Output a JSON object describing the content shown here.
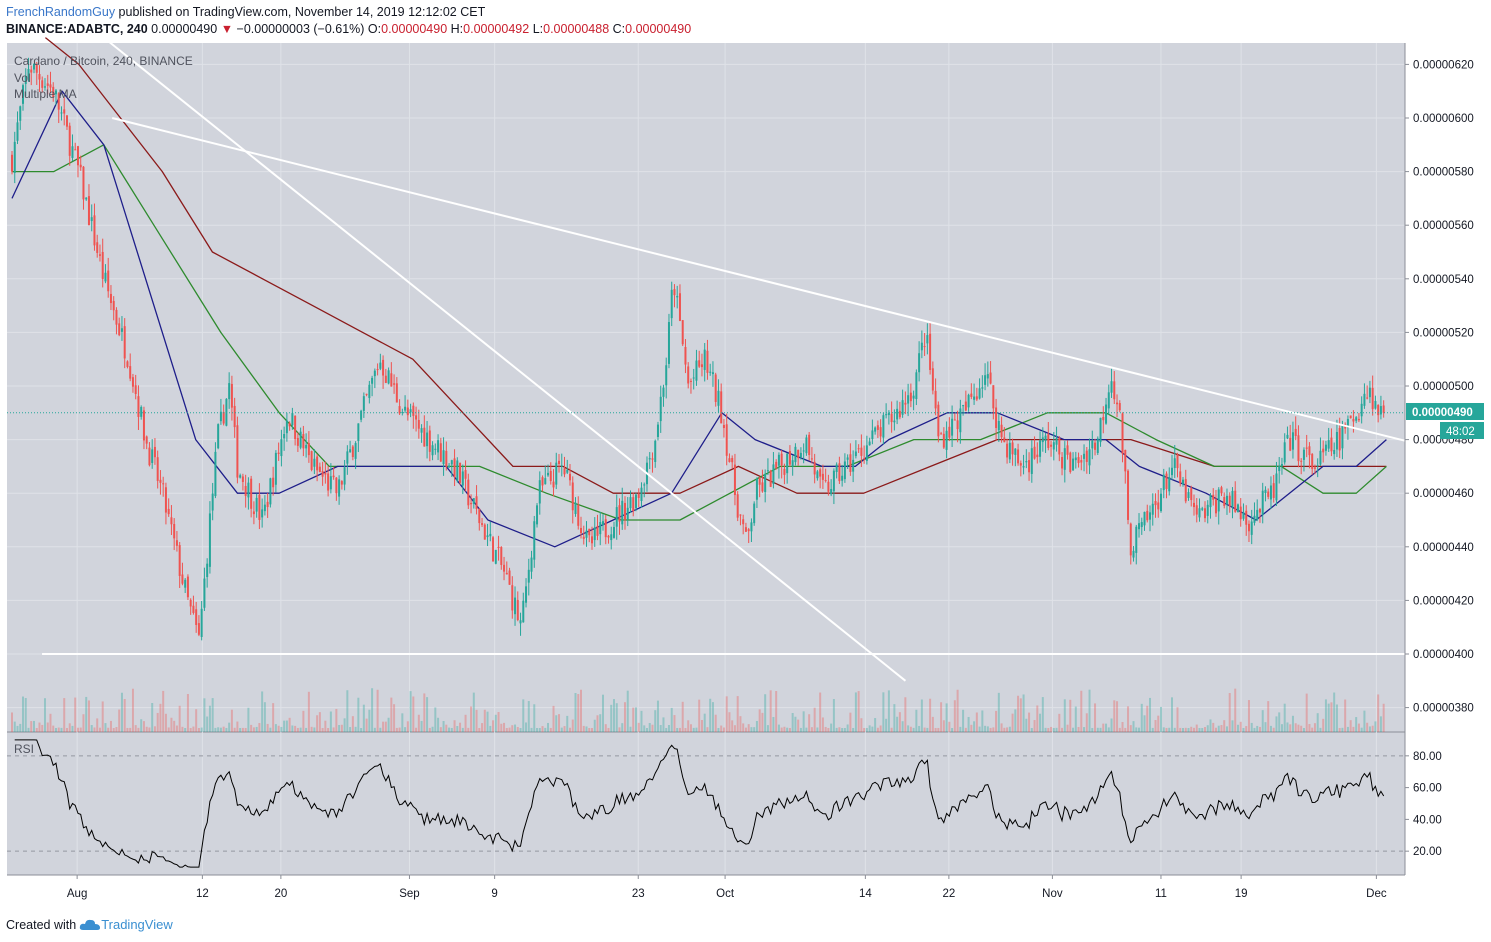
{
  "header": {
    "author": "FrenchRandomGuy",
    "published": " published on TradingView.com, November 14, 2019 12:12:02 CET",
    "symbol": "BINANCE:ADABTC, 240",
    "price": " 0.00000490",
    "change": " −0.00000003 (−0.61%)",
    "o_label": " O:",
    "o_val": "0.00000490",
    "h_label": " H:",
    "h_val": "0.00000492",
    "l_label": " L:",
    "l_val": "0.00000488",
    "c_label": " C:",
    "c_val": "0.00000490"
  },
  "footer": {
    "created": "Created with",
    "brand": "TradingView"
  },
  "colors": {
    "background": "#d1d4dc",
    "grid": "#dfe2e8",
    "up": "#26a69a",
    "down": "#ef5350",
    "ma_fast": "#1e1e8a",
    "ma_mid": "#2e8b2e",
    "ma_slow": "#8b1a1a",
    "trend": "#ffffff",
    "price_tag": "#26a69a",
    "rsi": "#000000"
  },
  "chart_data": {
    "type": "candlestick",
    "title": "Cardano / Bitcoin, 240, BINANCE",
    "legend": [
      "Vol",
      "Multiple MA"
    ],
    "x_tick_labels": [
      "Aug",
      "12",
      "20",
      "Sep",
      "9",
      "23",
      "Oct",
      "14",
      "22",
      "Nov",
      "11",
      "19",
      "Dec"
    ],
    "y_tick_labels": [
      "0.00000620",
      "0.00000600",
      "0.00000580",
      "0.00000560",
      "0.00000540",
      "0.00000520",
      "0.00000500",
      "0.00000480",
      "0.00000460",
      "0.00000440",
      "0.00000420",
      "0.00000400",
      "0.00000380"
    ],
    "ylim": [
      3.7e-06,
      6.3e-06
    ],
    "last_price_label": "0.00000490",
    "countdown_label": "48:02",
    "last_price": 4.9e-06,
    "close_anchors": [
      {
        "day": 0,
        "close": 5.85e-06
      },
      {
        "day": 1,
        "close": 6.2e-06
      },
      {
        "day": 2.5,
        "close": 6.1e-06
      },
      {
        "day": 4,
        "close": 5.8e-06
      },
      {
        "day": 5.5,
        "close": 5.4e-06
      },
      {
        "day": 7,
        "close": 5.1e-06
      },
      {
        "day": 8,
        "close": 4.8e-06
      },
      {
        "day": 9,
        "close": 4.6e-06
      },
      {
        "day": 10.5,
        "close": 4.2e-06
      },
      {
        "day": 11.2,
        "close": 4.05e-06
      },
      {
        "day": 12.3,
        "close": 4.8e-06
      },
      {
        "day": 13,
        "close": 5e-06
      },
      {
        "day": 13.5,
        "close": 4.7e-06
      },
      {
        "day": 15,
        "close": 4.5e-06
      },
      {
        "day": 16.5,
        "close": 4.9e-06
      },
      {
        "day": 18,
        "close": 4.7e-06
      },
      {
        "day": 19.5,
        "close": 4.6e-06
      },
      {
        "day": 21,
        "close": 4.9e-06
      },
      {
        "day": 22,
        "close": 5.1e-06
      },
      {
        "day": 23.5,
        "close": 4.9e-06
      },
      {
        "day": 25,
        "close": 4.8e-06
      },
      {
        "day": 26.5,
        "close": 4.7e-06
      },
      {
        "day": 28,
        "close": 4.5e-06
      },
      {
        "day": 29.5,
        "close": 4.3e-06
      },
      {
        "day": 30.5,
        "close": 4.1e-06
      },
      {
        "day": 31.5,
        "close": 4.6e-06
      },
      {
        "day": 33,
        "close": 4.7e-06
      },
      {
        "day": 34.5,
        "close": 4.4e-06
      },
      {
        "day": 36,
        "close": 4.5e-06
      },
      {
        "day": 37.5,
        "close": 4.6e-06
      },
      {
        "day": 38.5,
        "close": 4.8e-06
      },
      {
        "day": 39.2,
        "close": 5.1e-06
      },
      {
        "day": 39.6,
        "close": 5.4e-06
      },
      {
        "day": 40.5,
        "close": 5e-06
      },
      {
        "day": 41.5,
        "close": 5.1e-06
      },
      {
        "day": 42.5,
        "close": 4.9e-06
      },
      {
        "day": 43.3,
        "close": 4.6e-06
      },
      {
        "day": 44,
        "close": 4.4e-06
      },
      {
        "day": 44.5,
        "close": 4.6e-06
      },
      {
        "day": 46,
        "close": 4.7e-06
      },
      {
        "day": 47.5,
        "close": 4.8e-06
      },
      {
        "day": 48.5,
        "close": 4.6e-06
      },
      {
        "day": 50,
        "close": 4.7e-06
      },
      {
        "day": 51.5,
        "close": 4.8e-06
      },
      {
        "day": 53,
        "close": 4.9e-06
      },
      {
        "day": 54,
        "close": 5e-06
      },
      {
        "day": 54.7,
        "close": 5.2e-06
      },
      {
        "day": 55.5,
        "close": 4.8e-06
      },
      {
        "day": 57,
        "close": 4.9e-06
      },
      {
        "day": 58.3,
        "close": 5.05e-06
      },
      {
        "day": 59.3,
        "close": 4.8e-06
      },
      {
        "day": 60.5,
        "close": 4.7e-06
      },
      {
        "day": 62,
        "close": 4.8e-06
      },
      {
        "day": 63.5,
        "close": 4.7e-06
      },
      {
        "day": 65,
        "close": 4.8e-06
      },
      {
        "day": 65.8,
        "close": 5.05e-06
      },
      {
        "day": 66.3,
        "close": 4.9e-06
      },
      {
        "day": 66.6,
        "close": 4.7e-06
      },
      {
        "day": 66.9,
        "close": 4.4e-06
      },
      {
        "day": 68,
        "close": 4.5e-06
      },
      {
        "day": 69.5,
        "close": 4.7e-06
      },
      {
        "day": 71,
        "close": 4.5e-06
      },
      {
        "day": 72.5,
        "close": 4.6e-06
      },
      {
        "day": 74,
        "close": 4.5e-06
      },
      {
        "day": 75.5,
        "close": 4.6e-06
      },
      {
        "day": 76.5,
        "close": 4.8e-06
      },
      {
        "day": 78,
        "close": 4.7e-06
      },
      {
        "day": 79.5,
        "close": 4.8e-06
      },
      {
        "day": 80.5,
        "close": 4.9e-06
      },
      {
        "day": 81.2,
        "close": 5e-06
      },
      {
        "day": 81.8,
        "close": 4.9e-06
      },
      {
        "day": 82.3,
        "close": 4.9e-06
      }
    ],
    "ma_fast": [
      {
        "day": 0,
        "value": 5.7e-06
      },
      {
        "day": 3,
        "value": 6.1e-06
      },
      {
        "day": 5.5,
        "value": 5.9e-06
      },
      {
        "day": 8,
        "value": 5.4e-06
      },
      {
        "day": 11,
        "value": 4.8e-06
      },
      {
        "day": 13.5,
        "value": 4.6e-06
      },
      {
        "day": 16,
        "value": 4.6e-06
      },
      {
        "day": 19.5,
        "value": 4.7e-06
      },
      {
        "day": 22,
        "value": 4.7e-06
      },
      {
        "day": 26,
        "value": 4.7e-06
      },
      {
        "day": 28.5,
        "value": 4.5e-06
      },
      {
        "day": 32.5,
        "value": 4.4e-06
      },
      {
        "day": 36,
        "value": 4.5e-06
      },
      {
        "day": 39.5,
        "value": 4.6e-06
      },
      {
        "day": 42.5,
        "value": 4.9e-06
      },
      {
        "day": 44.5,
        "value": 4.8e-06
      },
      {
        "day": 48.5,
        "value": 4.7e-06
      },
      {
        "day": 50.5,
        "value": 4.7e-06
      },
      {
        "day": 52.5,
        "value": 4.8e-06
      },
      {
        "day": 56,
        "value": 4.9e-06
      },
      {
        "day": 59,
        "value": 4.9e-06
      },
      {
        "day": 63,
        "value": 4.8e-06
      },
      {
        "day": 65.5,
        "value": 4.8e-06
      },
      {
        "day": 67.5,
        "value": 4.7e-06
      },
      {
        "day": 71.5,
        "value": 4.6e-06
      },
      {
        "day": 74.5,
        "value": 4.5e-06
      },
      {
        "day": 76.5,
        "value": 4.6e-06
      },
      {
        "day": 78.5,
        "value": 4.7e-06
      },
      {
        "day": 80.5,
        "value": 4.7e-06
      },
      {
        "day": 82.3,
        "value": 4.8e-06
      }
    ],
    "ma_mid": [
      {
        "day": 0,
        "value": 5.8e-06
      },
      {
        "day": 2.5,
        "value": 5.8e-06
      },
      {
        "day": 5.5,
        "value": 5.9e-06
      },
      {
        "day": 8.5,
        "value": 5.6e-06
      },
      {
        "day": 12.5,
        "value": 5.2e-06
      },
      {
        "day": 16,
        "value": 4.9e-06
      },
      {
        "day": 19,
        "value": 4.7e-06
      },
      {
        "day": 22,
        "value": 4.7e-06
      },
      {
        "day": 25,
        "value": 4.7e-06
      },
      {
        "day": 28,
        "value": 4.7e-06
      },
      {
        "day": 32,
        "value": 4.6e-06
      },
      {
        "day": 36.5,
        "value": 4.5e-06
      },
      {
        "day": 40,
        "value": 4.5e-06
      },
      {
        "day": 43,
        "value": 4.6e-06
      },
      {
        "day": 46,
        "value": 4.7e-06
      },
      {
        "day": 50,
        "value": 4.7e-06
      },
      {
        "day": 54,
        "value": 4.8e-06
      },
      {
        "day": 58,
        "value": 4.8e-06
      },
      {
        "day": 62,
        "value": 4.9e-06
      },
      {
        "day": 65.5,
        "value": 4.9e-06
      },
      {
        "day": 68.5,
        "value": 4.8e-06
      },
      {
        "day": 72,
        "value": 4.7e-06
      },
      {
        "day": 76,
        "value": 4.7e-06
      },
      {
        "day": 78.5,
        "value": 4.6e-06
      },
      {
        "day": 80.5,
        "value": 4.6e-06
      },
      {
        "day": 82.3,
        "value": 4.7e-06
      }
    ],
    "ma_slow": [
      {
        "day": 2,
        "value": 6.3e-06
      },
      {
        "day": 4,
        "value": 6.2e-06
      },
      {
        "day": 6.5,
        "value": 6e-06
      },
      {
        "day": 9,
        "value": 5.8e-06
      },
      {
        "day": 12,
        "value": 5.5e-06
      },
      {
        "day": 15,
        "value": 5.4e-06
      },
      {
        "day": 18,
        "value": 5.3e-06
      },
      {
        "day": 21,
        "value": 5.2e-06
      },
      {
        "day": 24,
        "value": 5.1e-06
      },
      {
        "day": 27,
        "value": 4.9e-06
      },
      {
        "day": 30,
        "value": 4.7e-06
      },
      {
        "day": 33,
        "value": 4.7e-06
      },
      {
        "day": 36,
        "value": 4.6e-06
      },
      {
        "day": 40,
        "value": 4.6e-06
      },
      {
        "day": 43.5,
        "value": 4.7e-06
      },
      {
        "day": 47,
        "value": 4.6e-06
      },
      {
        "day": 51,
        "value": 4.6e-06
      },
      {
        "day": 55,
        "value": 4.7e-06
      },
      {
        "day": 59,
        "value": 4.8e-06
      },
      {
        "day": 63,
        "value": 4.8e-06
      },
      {
        "day": 67,
        "value": 4.8e-06
      },
      {
        "day": 72,
        "value": 4.7e-06
      },
      {
        "day": 77,
        "value": 4.7e-06
      },
      {
        "day": 80,
        "value": 4.7e-06
      },
      {
        "day": 82.3,
        "value": 4.7e-06
      }
    ],
    "trendlines": [
      {
        "day1": 6,
        "price1": 6e-06,
        "day2": 96,
        "price2": 4.6e-06
      },
      {
        "day1": 5.5,
        "price1": 6.3e-06,
        "day2": 53.5,
        "price2": 3.9e-06
      },
      {
        "day1": 1.8,
        "price1": 4e-06,
        "day2": 96,
        "price2": 4e-06
      }
    ],
    "rsi": {
      "label": "RSI",
      "y_tick_labels": [
        "80.00",
        "60.00",
        "40.00",
        "20.00"
      ],
      "ylim": [
        5,
        95
      ],
      "bands": [
        80,
        20
      ]
    }
  }
}
